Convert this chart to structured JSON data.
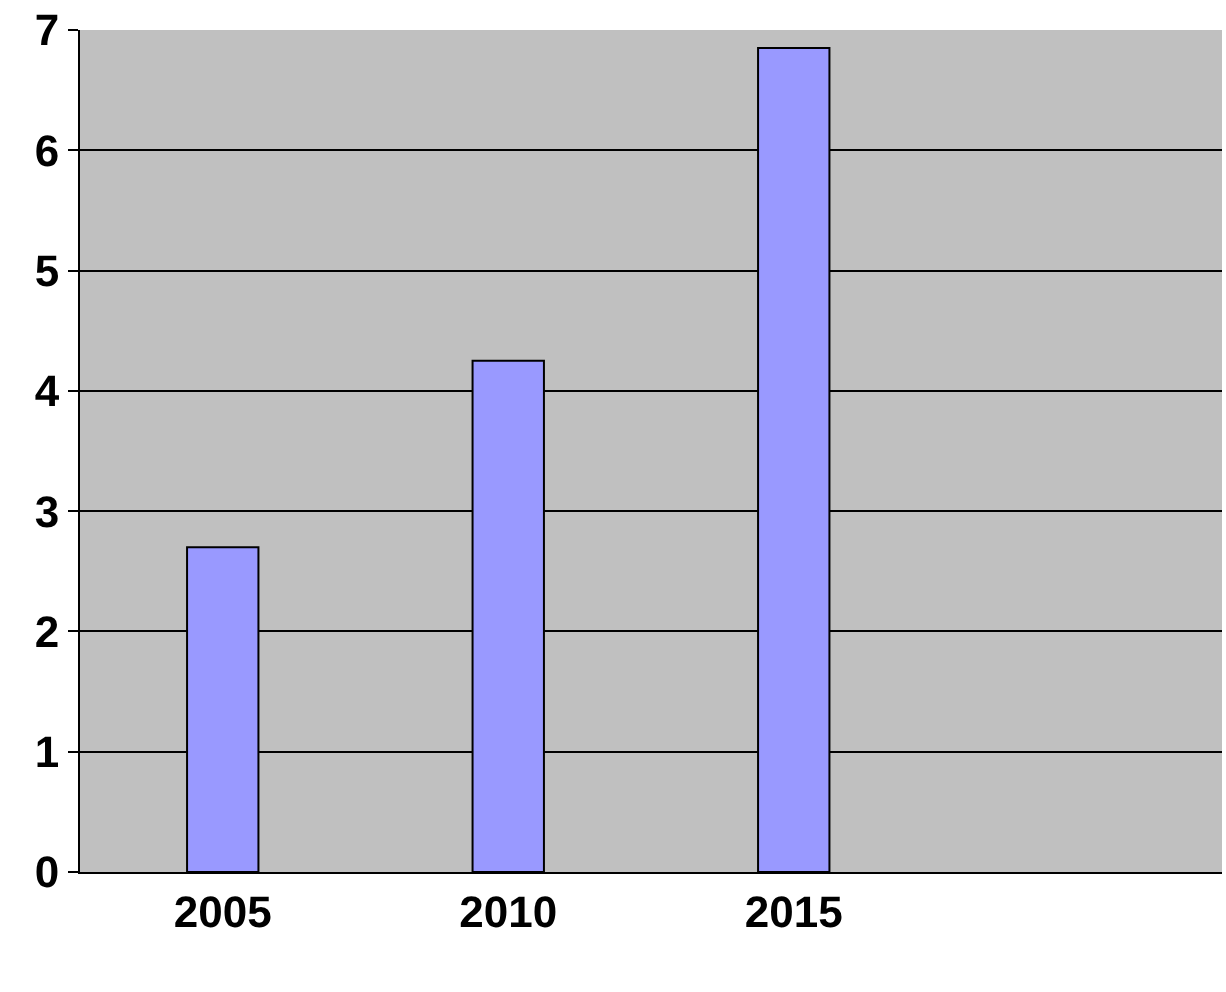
{
  "chart_data": {
    "type": "bar",
    "categories": [
      "2005",
      "2010",
      "2015",
      null
    ],
    "values": [
      2.7,
      4.25,
      6.85,
      null
    ],
    "color": "#9999ff",
    "ylim": [
      0,
      7
    ],
    "yticks": [
      0,
      1,
      2,
      3,
      4,
      5,
      6,
      7
    ],
    "grid": "y"
  }
}
